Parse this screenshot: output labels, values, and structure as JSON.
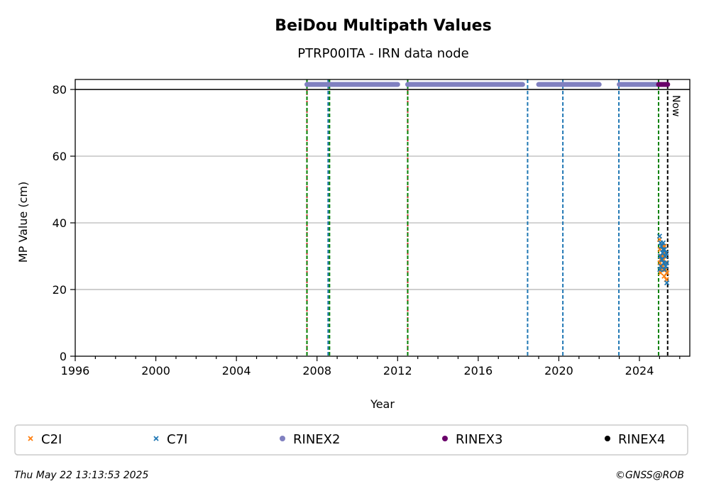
{
  "chart_data": {
    "type": "scatter",
    "title": "BeiDou Multipath Values",
    "subtitle": "PTRP00ITA - IRN data node",
    "xlabel": "Year",
    "ylabel": "MP Value (cm)",
    "xlim": [
      1996,
      2026.5
    ],
    "ylim": [
      0,
      83
    ],
    "xticks": [
      1996,
      2000,
      2004,
      2008,
      2012,
      2016,
      2020,
      2024
    ],
    "yticks": [
      0,
      20,
      40,
      60,
      80
    ],
    "grid": "y-major",
    "legend_position": "bottom",
    "series": [
      {
        "name": "C2I",
        "color": "#ff7f0e",
        "marker": "x",
        "x": [
          2025.0,
          2025.02,
          2025.05,
          2025.08,
          2025.1,
          2025.13,
          2025.16,
          2025.2,
          2025.23,
          2025.26,
          2025.3,
          2025.33,
          2025.36,
          2025.02,
          2025.06,
          2025.12,
          2025.18,
          2025.24,
          2025.3,
          2025.34
        ],
        "y": [
          35,
          28,
          25,
          30,
          26,
          33,
          27,
          29,
          24,
          31,
          26,
          28,
          25,
          32,
          29,
          27,
          30,
          33,
          28,
          23
        ]
      },
      {
        "name": "C7I",
        "color": "#1f77b4",
        "marker": "x",
        "x": [
          2025.0,
          2025.03,
          2025.06,
          2025.09,
          2025.12,
          2025.15,
          2025.18,
          2025.21,
          2025.24,
          2025.27,
          2025.3,
          2025.33,
          2025.36,
          2025.01,
          2025.05,
          2025.11,
          2025.17,
          2025.23,
          2025.29,
          2025.35
        ],
        "y": [
          36,
          30,
          27,
          33,
          29,
          31,
          34,
          28,
          32,
          30,
          27,
          31,
          22,
          26,
          34,
          29,
          32,
          26,
          30,
          28
        ]
      },
      {
        "name": "RINEX2",
        "color": "#8080c0",
        "marker": "o",
        "segments": [
          [
            2007.5,
            2012.0
          ],
          [
            2012.5,
            2018.2
          ],
          [
            2019.0,
            2022.0
          ],
          [
            2023.0,
            2025.0
          ]
        ],
        "y": 81.5
      },
      {
        "name": "RINEX3",
        "color": "#6a006a",
        "marker": "o",
        "segments": [
          [
            2024.95,
            2025.4
          ]
        ],
        "y": 81.5
      },
      {
        "name": "RINEX4",
        "color": "#000000",
        "marker": "o",
        "segments": [],
        "y": 81.5
      }
    ],
    "hlines": [
      {
        "y": 80,
        "color": "#000000",
        "style": "solid"
      }
    ],
    "vlines": [
      {
        "x": 2007.5,
        "color": "#d62728",
        "style": "dotted"
      },
      {
        "x": 2007.5,
        "color": "#008000",
        "style": "dashed"
      },
      {
        "x": 2008.55,
        "color": "#1f77b4",
        "style": "dashed"
      },
      {
        "x": 2008.62,
        "color": "#008000",
        "style": "dashed"
      },
      {
        "x": 2012.5,
        "color": "#d62728",
        "style": "dotted"
      },
      {
        "x": 2012.5,
        "color": "#008000",
        "style": "dashed"
      },
      {
        "x": 2018.45,
        "color": "#1f77b4",
        "style": "dashed"
      },
      {
        "x": 2020.2,
        "color": "#1f77b4",
        "style": "dashed"
      },
      {
        "x": 2022.98,
        "color": "#1f77b4",
        "style": "dashed"
      },
      {
        "x": 2024.95,
        "color": "#008000",
        "style": "dashed"
      },
      {
        "x": 2025.4,
        "color": "#000000",
        "style": "dashed",
        "label": "Now"
      }
    ]
  },
  "footer": {
    "timestamp": "Thu May 22 13:13:53 2025",
    "credit": "©GNSS@ROB"
  }
}
